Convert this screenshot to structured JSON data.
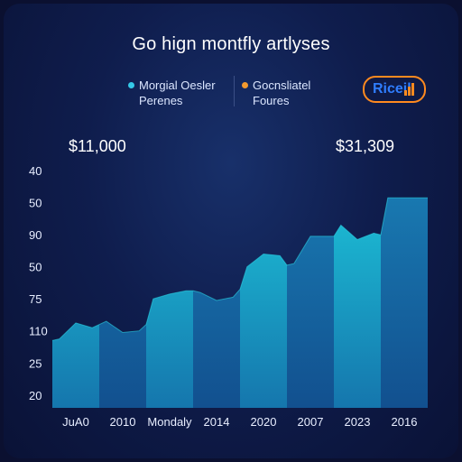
{
  "chart_data": {
    "type": "area",
    "title": "Go hign montfly artlyses",
    "categories": [
      "JuA0",
      "2010",
      "Mondaly",
      "2014",
      "2020",
      "2007",
      "2023",
      "2016"
    ],
    "y_tick_labels": [
      "40",
      "50",
      "90",
      "50",
      "75",
      "110",
      "25",
      "20"
    ],
    "y_tick_values": [
      8,
      7,
      6,
      5,
      4,
      3,
      2,
      1
    ],
    "ylim": [
      0.6,
      8.2
    ],
    "series": [
      {
        "name": "Morgial Oesler Perenes",
        "x": [
          0,
          0.15,
          0.5,
          0.85,
          1.15,
          1.5,
          1.85,
          2.0,
          2.15,
          2.5,
          2.85,
          3.0,
          3.15,
          3.5,
          3.85,
          4.0,
          4.15,
          4.5,
          4.85,
          5.0,
          5.15,
          5.5,
          5.85,
          6.0,
          6.15,
          6.5,
          6.85,
          7.0,
          7.15,
          7.5,
          7.85,
          8.0
        ],
        "values": [
          2.7,
          2.75,
          3.25,
          3.1,
          3.3,
          2.95,
          3.0,
          3.2,
          4.0,
          4.15,
          4.25,
          4.25,
          4.2,
          3.95,
          4.05,
          4.3,
          5.0,
          5.4,
          5.35,
          5.05,
          5.1,
          5.95,
          5.95,
          5.95,
          6.3,
          5.85,
          6.05,
          6.0,
          7.15,
          7.15,
          7.15,
          7.15
        ]
      }
    ],
    "callouts": [
      "$11,000",
      "$31,309"
    ],
    "legend": [
      "Morgial Oesler Perenes",
      "Gocnsliatel Foures"
    ],
    "legend_colors": [
      "#34c9e8",
      "#f39a2e"
    ],
    "colors": {
      "fill_light": "#19c3d8",
      "fill_dark": "#1768a6"
    },
    "grid": false
  },
  "legend": [
    {
      "line1": "Morgial Oesler",
      "line2": "Perenes",
      "color": "#34c9e8"
    },
    {
      "line1": "Gocnsliatel",
      "line2": "Foures",
      "color": "#f39a2e"
    }
  ],
  "badge": {
    "text": "Riceil"
  }
}
